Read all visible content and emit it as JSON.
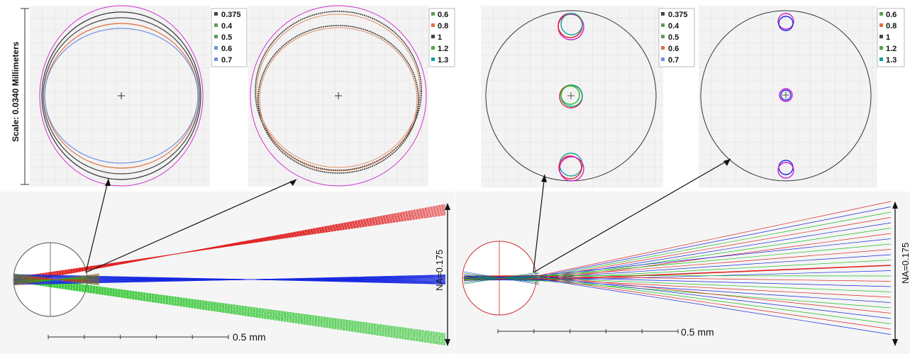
{
  "scale_label": "Scale: 0.0340 Millimeters",
  "left_figure": {
    "spot_legend_1": [
      "0.375",
      "0.4",
      "0.5",
      "0.6",
      "0.7"
    ],
    "spot_legend_2": [
      "0.6",
      "0.8",
      "1",
      "1.2",
      "1.3"
    ],
    "scale_bar_label": "0.5 mm",
    "na_label": "NA=0.175"
  },
  "right_figure": {
    "spot_legend_1": [
      "0.375",
      "0.4",
      "0.5",
      "0.6",
      "0.7"
    ],
    "spot_legend_2": [
      "0.6",
      "0.8",
      "1",
      "1.2",
      "1.3"
    ],
    "scale_bar_label": "0.5 mm",
    "na_label": "NA=0.175"
  },
  "colors": {
    "red": "#e02020",
    "green": "#18c018",
    "blue": "#1828e0",
    "magenta": "#d020d0",
    "teal": "#10a0a0",
    "grid": "#e6e6e6",
    "panel_bg": "#f2f2f2"
  }
}
